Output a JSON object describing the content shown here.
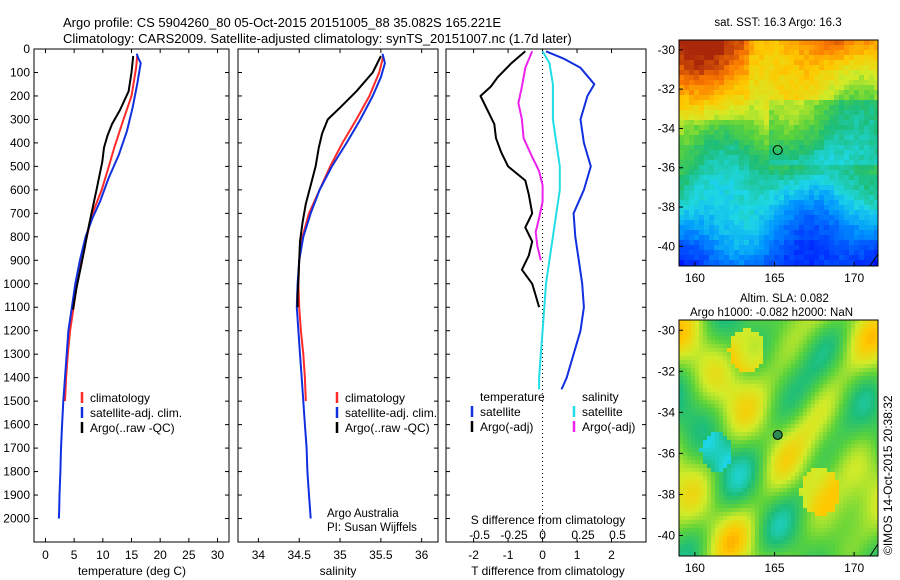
{
  "header": {
    "line1": "Argo profile: CS 5904260_80 05-Oct-2015 20151005_88 35.082S 165.221E",
    "line2": "Climatology: CARS2009. Satellite-adjusted climatology: synTS_20151007.nc (1.7d later)"
  },
  "colors": {
    "climatology": "#ff2a2a",
    "satellite": "#1030e0",
    "argo": "#000000",
    "sat_salinity": "#22dde8",
    "argo_salinity": "#ee22ee"
  },
  "chart_data": [
    {
      "id": "temperature",
      "type": "line",
      "xlabel": "temperature (deg C)",
      "ylabel": "",
      "xlim": [
        -2,
        32
      ],
      "ylim": [
        2100,
        0
      ],
      "xticks": [
        0,
        5,
        10,
        15,
        20,
        25,
        30
      ],
      "yticks": [
        0,
        100,
        200,
        300,
        400,
        500,
        600,
        700,
        800,
        900,
        1000,
        1100,
        1200,
        1300,
        1400,
        1500,
        1600,
        1700,
        1800,
        1900,
        2000
      ],
      "legend": [
        "climatology",
        "satellite-adj. clim.",
        "Argo(..raw -QC)"
      ],
      "legend_position": "lower-middle",
      "series": [
        {
          "name": "climatology",
          "color_key": "climatology",
          "points": [
            [
              16.0,
              30
            ],
            [
              15.8,
              80
            ],
            [
              15.0,
              200
            ],
            [
              13.6,
              300
            ],
            [
              12.0,
              420
            ],
            [
              10.8,
              520
            ],
            [
              9.8,
              600
            ],
            [
              8.2,
              700
            ],
            [
              7.2,
              800
            ],
            [
              6.3,
              900
            ],
            [
              5.5,
              1000
            ],
            [
              4.9,
              1100
            ],
            [
              4.3,
              1200
            ],
            [
              3.9,
              1300
            ],
            [
              3.6,
              1400
            ],
            [
              3.4,
              1500
            ]
          ]
        },
        {
          "name": "satellite-adj. clim.",
          "color_key": "satellite",
          "points": [
            [
              15.9,
              20
            ],
            [
              16.2,
              40
            ],
            [
              16.6,
              60
            ],
            [
              16.0,
              150
            ],
            [
              15.2,
              250
            ],
            [
              14.2,
              350
            ],
            [
              12.8,
              450
            ],
            [
              11.0,
              550
            ],
            [
              9.5,
              650
            ],
            [
              8.2,
              720
            ],
            [
              7.0,
              800
            ],
            [
              6.0,
              900
            ],
            [
              5.2,
              1000
            ],
            [
              4.6,
              1100
            ],
            [
              4.0,
              1200
            ],
            [
              3.7,
              1300
            ],
            [
              3.4,
              1400
            ],
            [
              3.1,
              1500
            ],
            [
              2.9,
              1600
            ],
            [
              2.7,
              1700
            ],
            [
              2.6,
              1800
            ],
            [
              2.45,
              1900
            ],
            [
              2.4,
              1960
            ],
            [
              2.35,
              2000
            ]
          ]
        },
        {
          "name": "Argo(..raw -QC)",
          "color_key": "argo",
          "points": [
            [
              15.3,
              30
            ],
            [
              15.0,
              100
            ],
            [
              14.5,
              180
            ],
            [
              13.0,
              260
            ],
            [
              11.6,
              320
            ],
            [
              10.8,
              370
            ],
            [
              10.2,
              420
            ],
            [
              9.9,
              480
            ],
            [
              9.4,
              540
            ],
            [
              8.9,
              600
            ],
            [
              8.2,
              680
            ],
            [
              7.5,
              760
            ],
            [
              6.9,
              840
            ],
            [
              6.4,
              900
            ],
            [
              5.9,
              960
            ],
            [
              5.4,
              1020
            ],
            [
              5.0,
              1080
            ],
            [
              4.8,
              1110
            ]
          ]
        }
      ]
    },
    {
      "id": "salinity",
      "type": "line",
      "xlabel": "salinity",
      "ylabel": "",
      "xlim": [
        33.75,
        36.2
      ],
      "ylim": [
        2100,
        0
      ],
      "xticks": [
        34,
        34.5,
        35,
        35.5,
        36
      ],
      "legend": [
        "climatology",
        "satellite-adj. clim.",
        "Argo(..raw -QC)"
      ],
      "legend_position": "lower-right",
      "annotation": [
        "Argo Australia",
        "PI: Susan Wijffels"
      ],
      "series": [
        {
          "name": "climatology",
          "color_key": "climatology",
          "points": [
            [
              35.53,
              30
            ],
            [
              35.48,
              100
            ],
            [
              35.36,
              200
            ],
            [
              35.2,
              300
            ],
            [
              35.03,
              400
            ],
            [
              34.88,
              500
            ],
            [
              34.75,
              600
            ],
            [
              34.62,
              700
            ],
            [
              34.54,
              800
            ],
            [
              34.5,
              900
            ],
            [
              34.49,
              1000
            ],
            [
              34.5,
              1100
            ],
            [
              34.52,
              1200
            ],
            [
              34.55,
              1300
            ],
            [
              34.57,
              1400
            ],
            [
              34.58,
              1500
            ]
          ]
        },
        {
          "name": "satellite-adj. clim.",
          "color_key": "satellite",
          "points": [
            [
              35.52,
              20
            ],
            [
              35.55,
              60
            ],
            [
              35.5,
              120
            ],
            [
              35.4,
              200
            ],
            [
              35.25,
              300
            ],
            [
              35.08,
              400
            ],
            [
              34.9,
              500
            ],
            [
              34.75,
              600
            ],
            [
              34.64,
              700
            ],
            [
              34.55,
              800
            ],
            [
              34.5,
              900
            ],
            [
              34.48,
              1000
            ],
            [
              34.47,
              1100
            ],
            [
              34.49,
              1200
            ],
            [
              34.51,
              1300
            ],
            [
              34.53,
              1400
            ],
            [
              34.55,
              1500
            ],
            [
              34.57,
              1600
            ],
            [
              34.59,
              1700
            ],
            [
              34.6,
              1800
            ],
            [
              34.62,
              1900
            ],
            [
              34.64,
              2000
            ]
          ]
        },
        {
          "name": "Argo(..raw -QC)",
          "color_key": "argo",
          "points": [
            [
              35.5,
              30
            ],
            [
              35.4,
              100
            ],
            [
              35.2,
              180
            ],
            [
              35.0,
              250
            ],
            [
              34.85,
              300
            ],
            [
              34.78,
              360
            ],
            [
              34.74,
              420
            ],
            [
              34.7,
              500
            ],
            [
              34.64,
              580
            ],
            [
              34.58,
              660
            ],
            [
              34.54,
              740
            ],
            [
              34.51,
              820
            ],
            [
              34.5,
              900
            ],
            [
              34.49,
              980
            ],
            [
              34.48,
              1050
            ],
            [
              34.48,
              1100
            ]
          ]
        }
      ]
    },
    {
      "id": "difference",
      "type": "line",
      "xlabel": "T difference from climatology",
      "x2label": "S difference from climatology",
      "xlim": [
        -2.8,
        3.0
      ],
      "ylim": [
        2100,
        0
      ],
      "xticks": [
        -2,
        -1,
        0,
        1,
        2
      ],
      "x2ticks": [
        "-0.5",
        "-0.25",
        "0",
        "0.25",
        "0.5"
      ],
      "x2tick_values": [
        -2,
        -1,
        0,
        1,
        2
      ],
      "zero_line": "dotted",
      "legend_titles": [
        "temperature",
        "salinity"
      ],
      "legend": [
        "satellite",
        "Argo(-adj)",
        "satellite",
        "Argo(-adj)"
      ],
      "series": [
        {
          "name": "satellite",
          "group": "temperature",
          "color_key": "satellite",
          "points": [
            [
              0.1,
              10
            ],
            [
              0.6,
              40
            ],
            [
              1.1,
              80
            ],
            [
              1.5,
              150
            ],
            [
              1.3,
              200
            ],
            [
              1.1,
              300
            ],
            [
              1.2,
              400
            ],
            [
              1.4,
              500
            ],
            [
              1.2,
              600
            ],
            [
              0.9,
              700
            ],
            [
              0.95,
              800
            ],
            [
              1.05,
              900
            ],
            [
              1.15,
              1000
            ],
            [
              1.2,
              1100
            ],
            [
              1.1,
              1200
            ],
            [
              0.9,
              1300
            ],
            [
              0.7,
              1400
            ],
            [
              0.55,
              1450
            ]
          ]
        },
        {
          "name": "Argo(-adj)",
          "group": "temperature",
          "color_key": "argo",
          "points": [
            [
              -0.5,
              10
            ],
            [
              -0.9,
              60
            ],
            [
              -1.3,
              120
            ],
            [
              -1.5,
              160
            ],
            [
              -1.8,
              200
            ],
            [
              -1.6,
              260
            ],
            [
              -1.4,
              320
            ],
            [
              -1.35,
              380
            ],
            [
              -1.2,
              440
            ],
            [
              -1.0,
              500
            ],
            [
              -0.5,
              560
            ],
            [
              -0.4,
              620
            ],
            [
              -0.3,
              700
            ],
            [
              -0.5,
              760
            ],
            [
              -0.3,
              820
            ],
            [
              -0.4,
              880
            ],
            [
              -0.6,
              940
            ],
            [
              -0.3,
              1000
            ],
            [
              -0.2,
              1050
            ],
            [
              -0.1,
              1100
            ]
          ]
        },
        {
          "name": "satellite",
          "group": "salinity",
          "color_key": "sat_salinity",
          "points": [
            [
              0.0,
              10
            ],
            [
              0.2,
              60
            ],
            [
              0.3,
              150
            ],
            [
              0.3,
              300
            ],
            [
              0.4,
              400
            ],
            [
              0.5,
              500
            ],
            [
              0.5,
              600
            ],
            [
              0.4,
              700
            ],
            [
              0.3,
              800
            ],
            [
              0.2,
              900
            ],
            [
              0.1,
              1000
            ],
            [
              0.05,
              1100
            ],
            [
              0.0,
              1200
            ],
            [
              -0.05,
              1300
            ],
            [
              -0.1,
              1400
            ],
            [
              -0.1,
              1450
            ]
          ]
        },
        {
          "name": "Argo(-adj)",
          "group": "salinity",
          "color_key": "argo_salinity",
          "points": [
            [
              -0.3,
              10
            ],
            [
              -0.5,
              80
            ],
            [
              -0.6,
              160
            ],
            [
              -0.7,
              230
            ],
            [
              -0.6,
              300
            ],
            [
              -0.55,
              380
            ],
            [
              -0.3,
              460
            ],
            [
              -0.1,
              520
            ],
            [
              0.0,
              580
            ],
            [
              0.0,
              650
            ],
            [
              -0.1,
              720
            ],
            [
              -0.2,
              780
            ],
            [
              -0.15,
              840
            ],
            [
              -0.05,
              900
            ]
          ]
        }
      ]
    },
    {
      "id": "sst_map",
      "type": "heatmap",
      "title": "sat. SST: 16.3  Argo: 16.3",
      "xlim": [
        159,
        171.5
      ],
      "ylim": [
        -41,
        -29.5
      ],
      "xticks": [
        160,
        165,
        170
      ],
      "yticks": [
        -30,
        -32,
        -34,
        -36,
        -38,
        -40
      ],
      "marker": {
        "lon": 165.2,
        "lat": -35.1,
        "style": "open-circle"
      },
      "palette": "jet"
    },
    {
      "id": "sla_map",
      "type": "heatmap",
      "title_lines": [
        "Altim. SLA: 0.082",
        "Argo h1000: -0.082 h2000: NaN"
      ],
      "xlim": [
        159,
        171.5
      ],
      "ylim": [
        -41,
        -29.5
      ],
      "xticks": [
        160,
        165,
        170
      ],
      "yticks": [
        -30,
        -32,
        -34,
        -36,
        -38,
        -40
      ],
      "marker": {
        "lon": 165.2,
        "lat": -35.1,
        "style": "filled-circle"
      },
      "palette": "jet"
    }
  ],
  "credit": "©IMOS 14-Oct-2015 20:38:32"
}
